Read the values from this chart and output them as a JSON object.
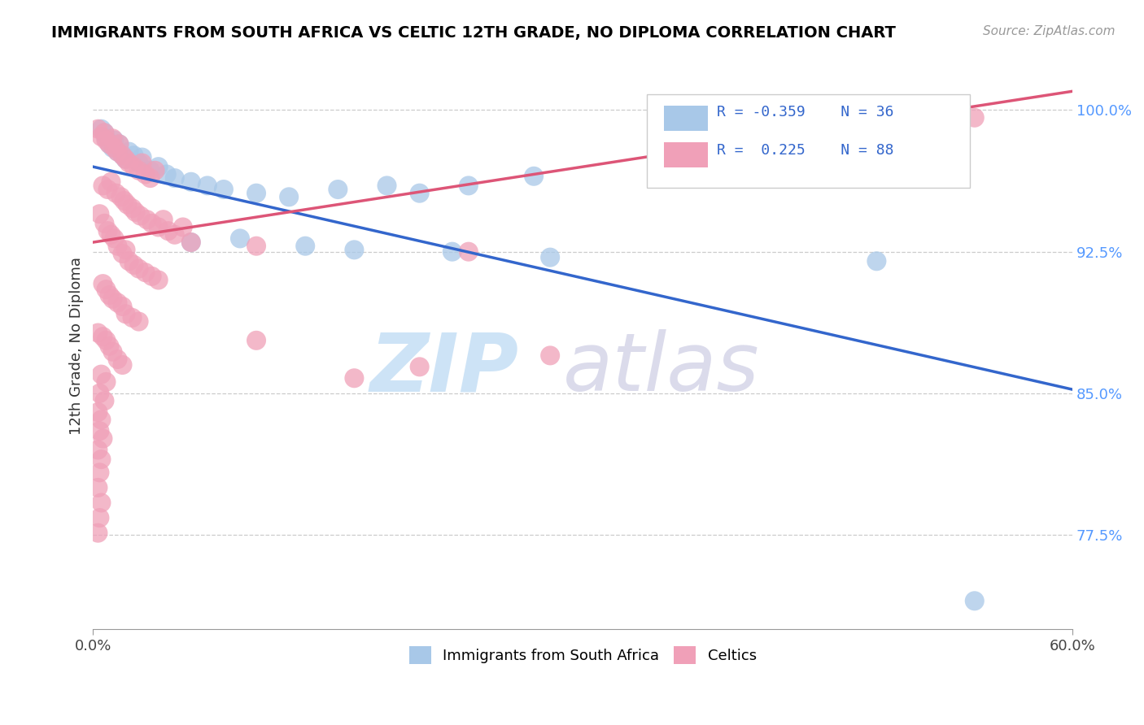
{
  "title": "IMMIGRANTS FROM SOUTH AFRICA VS CELTIC 12TH GRADE, NO DIPLOMA CORRELATION CHART",
  "source_text": "Source: ZipAtlas.com",
  "ylabel": "12th Grade, No Diploma",
  "x_min": 0.0,
  "x_max": 0.6,
  "y_min": 0.725,
  "y_max": 1.025,
  "blue_R": -0.359,
  "blue_N": 36,
  "pink_R": 0.225,
  "pink_N": 88,
  "blue_color": "#a8c8e8",
  "pink_color": "#f0a0b8",
  "blue_line_color": "#3366cc",
  "pink_line_color": "#dd5577",
  "yticks": [
    0.775,
    0.85,
    0.925,
    1.0
  ],
  "ytick_labels": [
    "77.5%",
    "85.0%",
    "92.5%",
    "100.0%"
  ],
  "xticks": [
    0.0,
    0.6
  ],
  "xtick_labels": [
    "0.0%",
    "60.0%"
  ],
  "blue_line_x0": 0.0,
  "blue_line_y0": 0.97,
  "blue_line_x1": 0.6,
  "blue_line_y1": 0.852,
  "pink_line_x0": 0.0,
  "pink_line_y0": 0.93,
  "pink_line_x1": 0.6,
  "pink_line_y1": 1.01,
  "blue_points": [
    [
      0.005,
      0.99
    ],
    [
      0.007,
      0.988
    ],
    [
      0.008,
      0.985
    ],
    [
      0.01,
      0.982
    ],
    [
      0.012,
      0.98
    ],
    [
      0.013,
      0.984
    ],
    [
      0.015,
      0.978
    ],
    [
      0.016,
      0.982
    ],
    [
      0.018,
      0.976
    ],
    [
      0.02,
      0.974
    ],
    [
      0.022,
      0.978
    ],
    [
      0.025,
      0.976
    ],
    [
      0.028,
      0.972
    ],
    [
      0.03,
      0.975
    ],
    [
      0.035,
      0.968
    ],
    [
      0.04,
      0.97
    ],
    [
      0.045,
      0.966
    ],
    [
      0.05,
      0.964
    ],
    [
      0.06,
      0.962
    ],
    [
      0.07,
      0.96
    ],
    [
      0.08,
      0.958
    ],
    [
      0.1,
      0.956
    ],
    [
      0.12,
      0.954
    ],
    [
      0.15,
      0.958
    ],
    [
      0.18,
      0.96
    ],
    [
      0.2,
      0.956
    ],
    [
      0.23,
      0.96
    ],
    [
      0.27,
      0.965
    ],
    [
      0.06,
      0.93
    ],
    [
      0.09,
      0.932
    ],
    [
      0.13,
      0.928
    ],
    [
      0.16,
      0.926
    ],
    [
      0.22,
      0.925
    ],
    [
      0.28,
      0.922
    ],
    [
      0.48,
      0.92
    ],
    [
      0.54,
      0.74
    ]
  ],
  "pink_points": [
    [
      0.003,
      0.99
    ],
    [
      0.005,
      0.986
    ],
    [
      0.007,
      0.988
    ],
    [
      0.008,
      0.984
    ],
    [
      0.01,
      0.982
    ],
    [
      0.012,
      0.985
    ],
    [
      0.013,
      0.98
    ],
    [
      0.015,
      0.978
    ],
    [
      0.016,
      0.982
    ],
    [
      0.018,
      0.976
    ],
    [
      0.02,
      0.974
    ],
    [
      0.022,
      0.972
    ],
    [
      0.025,
      0.97
    ],
    [
      0.028,
      0.968
    ],
    [
      0.03,
      0.972
    ],
    [
      0.032,
      0.966
    ],
    [
      0.035,
      0.964
    ],
    [
      0.038,
      0.968
    ],
    [
      0.006,
      0.96
    ],
    [
      0.009,
      0.958
    ],
    [
      0.011,
      0.962
    ],
    [
      0.014,
      0.956
    ],
    [
      0.017,
      0.954
    ],
    [
      0.019,
      0.952
    ],
    [
      0.021,
      0.95
    ],
    [
      0.024,
      0.948
    ],
    [
      0.026,
      0.946
    ],
    [
      0.029,
      0.944
    ],
    [
      0.033,
      0.942
    ],
    [
      0.036,
      0.94
    ],
    [
      0.04,
      0.938
    ],
    [
      0.043,
      0.942
    ],
    [
      0.046,
      0.936
    ],
    [
      0.05,
      0.934
    ],
    [
      0.055,
      0.938
    ],
    [
      0.004,
      0.945
    ],
    [
      0.007,
      0.94
    ],
    [
      0.009,
      0.936
    ],
    [
      0.011,
      0.934
    ],
    [
      0.013,
      0.932
    ],
    [
      0.015,
      0.928
    ],
    [
      0.018,
      0.924
    ],
    [
      0.02,
      0.926
    ],
    [
      0.022,
      0.92
    ],
    [
      0.025,
      0.918
    ],
    [
      0.028,
      0.916
    ],
    [
      0.032,
      0.914
    ],
    [
      0.036,
      0.912
    ],
    [
      0.04,
      0.91
    ],
    [
      0.006,
      0.908
    ],
    [
      0.008,
      0.905
    ],
    [
      0.01,
      0.902
    ],
    [
      0.012,
      0.9
    ],
    [
      0.015,
      0.898
    ],
    [
      0.018,
      0.896
    ],
    [
      0.02,
      0.892
    ],
    [
      0.024,
      0.89
    ],
    [
      0.028,
      0.888
    ],
    [
      0.003,
      0.882
    ],
    [
      0.006,
      0.88
    ],
    [
      0.008,
      0.878
    ],
    [
      0.01,
      0.875
    ],
    [
      0.012,
      0.872
    ],
    [
      0.015,
      0.868
    ],
    [
      0.018,
      0.865
    ],
    [
      0.005,
      0.86
    ],
    [
      0.008,
      0.856
    ],
    [
      0.004,
      0.85
    ],
    [
      0.007,
      0.846
    ],
    [
      0.003,
      0.84
    ],
    [
      0.005,
      0.836
    ],
    [
      0.004,
      0.83
    ],
    [
      0.006,
      0.826
    ],
    [
      0.003,
      0.82
    ],
    [
      0.005,
      0.815
    ],
    [
      0.004,
      0.808
    ],
    [
      0.003,
      0.8
    ],
    [
      0.005,
      0.792
    ],
    [
      0.004,
      0.784
    ],
    [
      0.003,
      0.776
    ],
    [
      0.06,
      0.93
    ],
    [
      0.1,
      0.928
    ],
    [
      0.1,
      0.878
    ],
    [
      0.54,
      0.996
    ],
    [
      0.16,
      0.858
    ],
    [
      0.2,
      0.864
    ],
    [
      0.23,
      0.925
    ],
    [
      0.28,
      0.87
    ]
  ]
}
